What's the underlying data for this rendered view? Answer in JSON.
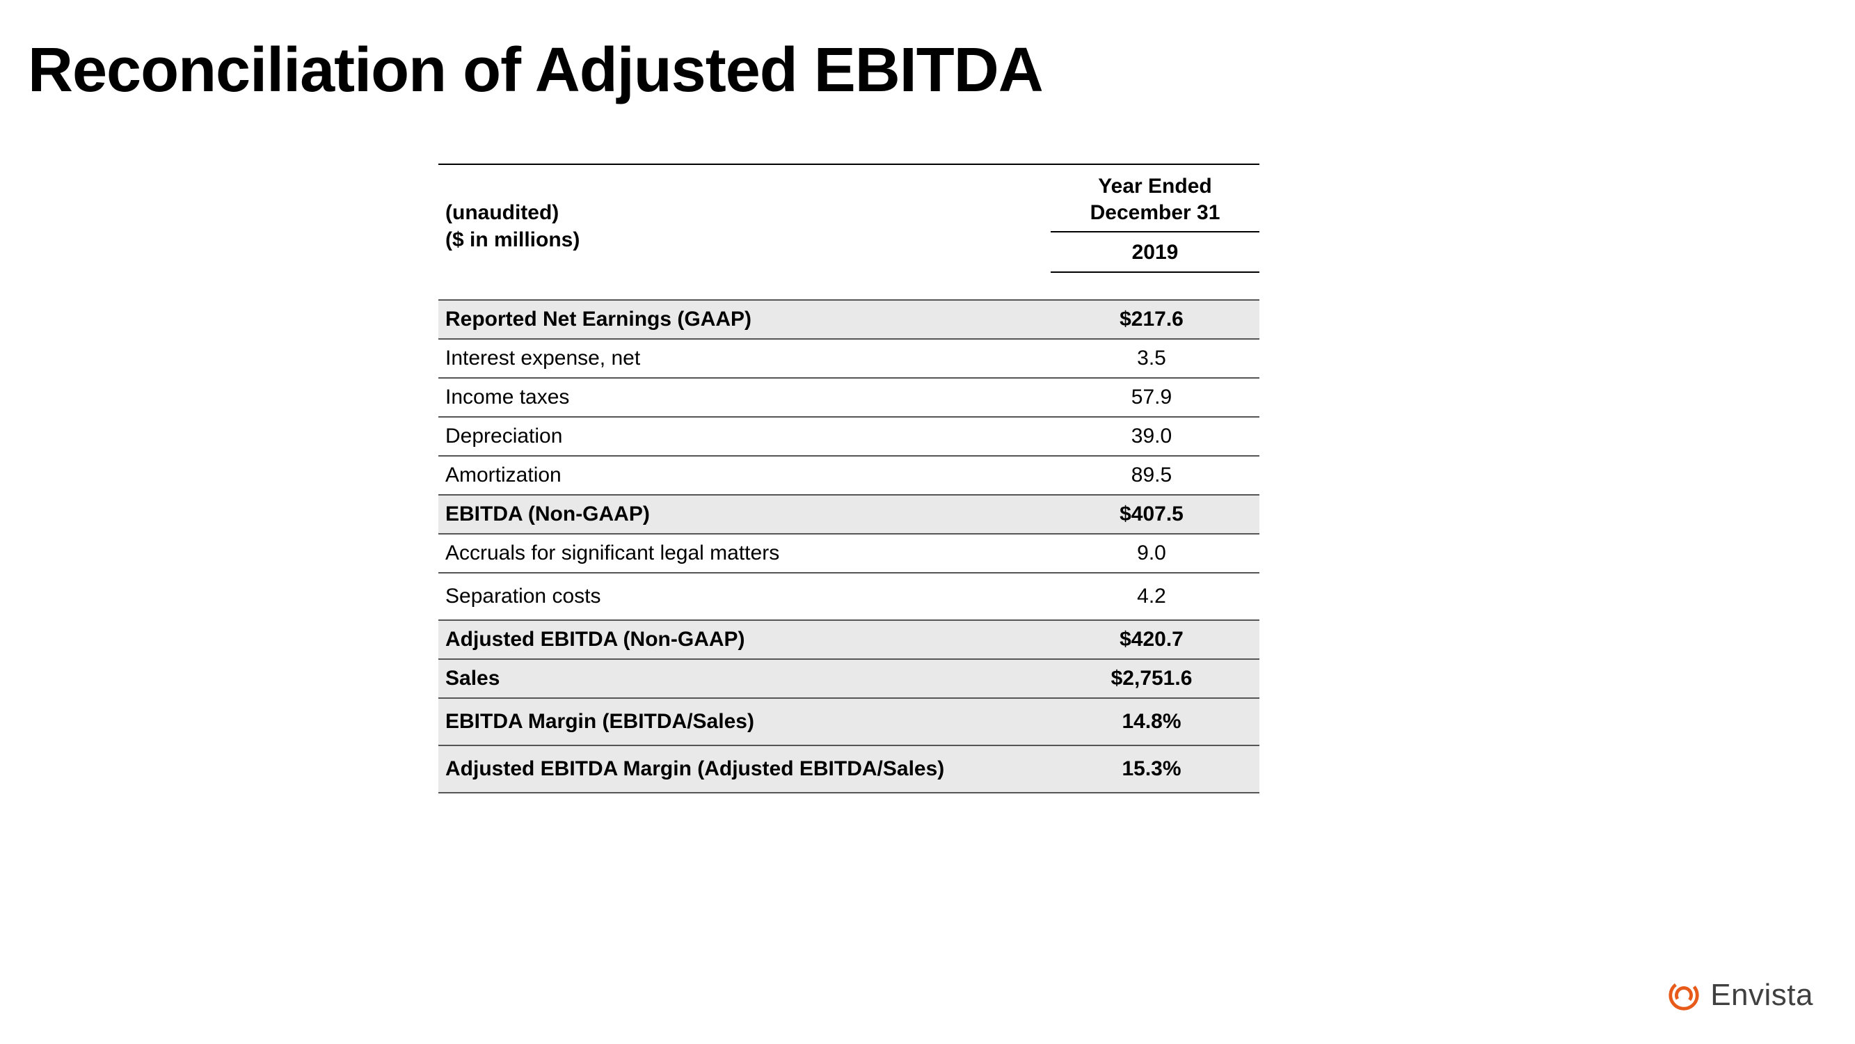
{
  "title": "Reconciliation of Adjusted EBITDA",
  "header": {
    "left_line1": "(unaudited)",
    "left_line2": "($ in millions)",
    "period": "Year Ended\nDecember 31",
    "year": "2019"
  },
  "rows": [
    {
      "label": "Reported Net Earnings (GAAP)",
      "value": "$217.6",
      "shaded": true
    },
    {
      "label": "Interest expense, net",
      "value": "3.5",
      "shaded": false
    },
    {
      "label": "Income taxes",
      "value": "57.9",
      "shaded": false
    },
    {
      "label": "Depreciation",
      "value": "39.0",
      "shaded": false
    },
    {
      "label": "Amortization",
      "value": "89.5",
      "shaded": false
    },
    {
      "label": "EBITDA (Non-GAAP)",
      "value": "$407.5",
      "shaded": true
    },
    {
      "label": "Accruals for significant legal matters",
      "value": "9.0",
      "shaded": false
    },
    {
      "label": "Separation costs",
      "value": "4.2",
      "shaded": false,
      "tall": true
    },
    {
      "label": "Adjusted EBITDA (Non-GAAP)",
      "value": "$420.7",
      "shaded": true
    },
    {
      "label": "Sales",
      "value": "$2,751.6",
      "shaded": true
    },
    {
      "label": "EBITDA Margin (EBITDA/Sales)",
      "value": "14.8%",
      "shaded": true,
      "tall": true
    },
    {
      "label": "Adjusted EBITDA Margin (Adjusted EBITDA/Sales)",
      "value": "15.3%",
      "shaded": true,
      "tall": true
    }
  ],
  "brand": {
    "name": "Envista",
    "accent_color": "#e85a1a"
  },
  "style": {
    "background": "#ffffff",
    "text_color": "#000000",
    "shade_color": "#e9e9e9",
    "border_color": "#555555",
    "title_fontsize": 90,
    "body_fontsize": 30
  }
}
